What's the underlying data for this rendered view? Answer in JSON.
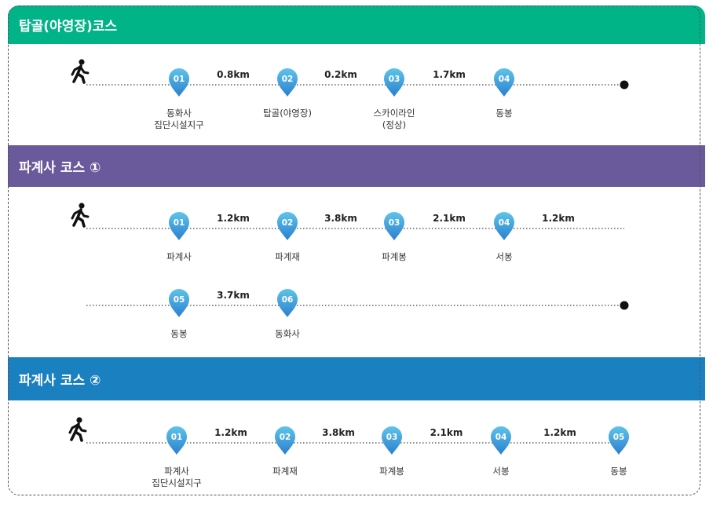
{
  "sections": [
    {
      "title": "탑골(야영장)코스",
      "rows": [
        {
          "stops": [
            {
              "num": "01",
              "label": [
                "동화사",
                "집단시설지구"
              ]
            },
            {
              "num": "02",
              "label": [
                "탑골(야영장)"
              ]
            },
            {
              "num": "03",
              "label": [
                "스카이라인",
                "(정상)"
              ]
            },
            {
              "num": "04",
              "label": [
                "동봉"
              ]
            }
          ],
          "distances": [
            "0.8km",
            "0.2km",
            "1.7km"
          ],
          "start_icon": "walking-person-icon",
          "end": "dot"
        }
      ]
    },
    {
      "title": "파계사 코스 ①",
      "rows": [
        {
          "stops": [
            {
              "num": "01",
              "label": [
                "파계사"
              ]
            },
            {
              "num": "02",
              "label": [
                "파계재"
              ]
            },
            {
              "num": "03",
              "label": [
                "파계봉"
              ]
            },
            {
              "num": "04",
              "label": [
                "서봉"
              ]
            }
          ],
          "distances": [
            "1.2km",
            "3.8km",
            "2.1km",
            "1.2km"
          ],
          "start_icon": "walking-person-icon",
          "end": "none"
        },
        {
          "stops": [
            {
              "num": "05",
              "label": [
                "동봉"
              ]
            },
            {
              "num": "06",
              "label": [
                "동화사"
              ]
            }
          ],
          "distances": [
            "3.7km"
          ],
          "start_icon": "",
          "end": "dot"
        }
      ]
    },
    {
      "title": "파계사 코스 ②",
      "rows": [
        {
          "stops": [
            {
              "num": "01",
              "label": [
                "파계사",
                "집단시설지구"
              ]
            },
            {
              "num": "02",
              "label": [
                "파계재"
              ]
            },
            {
              "num": "03",
              "label": [
                "파계봉"
              ]
            },
            {
              "num": "04",
              "label": [
                "서봉"
              ]
            },
            {
              "num": "05",
              "label": [
                "동봉"
              ]
            }
          ],
          "distances": [
            "1.2km",
            "3.8km",
            "2.1km",
            "1.2km"
          ],
          "start_icon": "walking-person-icon",
          "end": "none"
        }
      ]
    }
  ],
  "colors": {
    "section1": "#00b488",
    "section2": "#6a5a9c",
    "section3": "#1a80bf",
    "marker_top": "#5fc4e8",
    "marker_bottom": "#2a7fd0"
  }
}
